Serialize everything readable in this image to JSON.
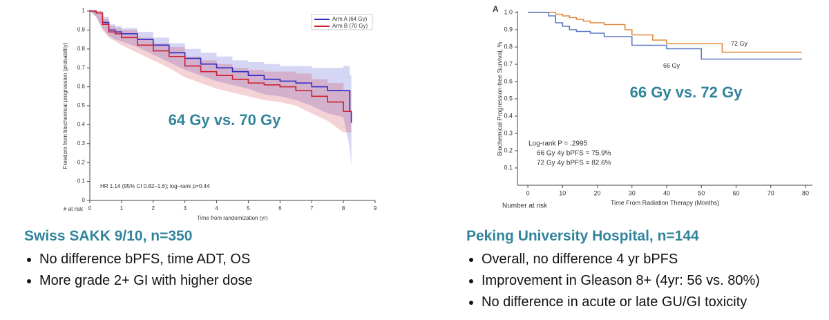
{
  "chart_data": [
    {
      "type": "line",
      "step": true,
      "y_label": "Freedom from biochemical progression (probability)",
      "x_label": "Time from randomization (yr)",
      "annotations": [
        "HR 1.14  (95% CI  0.82–1.6);  log–rank p=0.44",
        "# at risk",
        "64 Gy vs. 70 Gy"
      ],
      "legend": "upper right",
      "x": [
        0,
        0.2,
        0.4,
        0.6,
        0.8,
        1,
        1.5,
        2,
        2.5,
        3,
        3.5,
        4,
        4.5,
        5,
        5.5,
        6,
        6.5,
        7,
        7.5,
        8,
        8.2,
        8.25
      ],
      "series": [
        {
          "name": "Arm A (64 Gy)",
          "color": "#2b2bc8",
          "values": [
            1,
            0.99,
            0.94,
            0.9,
            0.89,
            0.88,
            0.85,
            0.82,
            0.78,
            0.75,
            0.72,
            0.7,
            0.68,
            0.66,
            0.64,
            0.63,
            0.62,
            0.6,
            0.58,
            0.58,
            0.47,
            0.41
          ],
          "upper": [
            1,
            1,
            0.97,
            0.93,
            0.92,
            0.91,
            0.89,
            0.86,
            0.83,
            0.8,
            0.78,
            0.76,
            0.74,
            0.73,
            0.72,
            0.71,
            0.71,
            0.7,
            0.7,
            0.71,
            0.66,
            0.62
          ],
          "lower": [
            1,
            0.97,
            0.91,
            0.87,
            0.85,
            0.84,
            0.81,
            0.77,
            0.73,
            0.69,
            0.66,
            0.63,
            0.61,
            0.59,
            0.56,
            0.55,
            0.53,
            0.5,
            0.46,
            0.44,
            0.28,
            0.18
          ]
        },
        {
          "name": "Arm B (70 Gy)",
          "color": "#cc1f2f",
          "values": [
            1,
            0.99,
            0.93,
            0.89,
            0.88,
            0.86,
            0.82,
            0.79,
            0.76,
            0.71,
            0.68,
            0.66,
            0.64,
            0.62,
            0.61,
            0.6,
            0.58,
            0.55,
            0.52,
            0.47,
            0.47,
            0.47
          ],
          "upper": [
            1,
            1,
            0.96,
            0.92,
            0.91,
            0.9,
            0.86,
            0.83,
            0.81,
            0.76,
            0.74,
            0.72,
            0.7,
            0.69,
            0.68,
            0.68,
            0.67,
            0.64,
            0.62,
            0.58,
            0.58,
            0.58
          ],
          "lower": [
            1,
            0.97,
            0.9,
            0.86,
            0.84,
            0.82,
            0.78,
            0.74,
            0.7,
            0.65,
            0.62,
            0.59,
            0.57,
            0.55,
            0.53,
            0.52,
            0.5,
            0.46,
            0.42,
            0.36,
            0.36,
            0.36
          ]
        }
      ],
      "xlim": [
        0,
        9
      ],
      "xticks": [
        0,
        1,
        2,
        3,
        4,
        5,
        6,
        7,
        8,
        9
      ],
      "ylim": [
        0,
        1
      ],
      "yticks": [
        0,
        0.1,
        0.2,
        0.3,
        0.4,
        0.5,
        0.6,
        0.7,
        0.8,
        0.9,
        1
      ]
    },
    {
      "type": "line",
      "step": true,
      "panel_label": "A",
      "y_label": "Biochemical Progression-free Survival, %",
      "x_label": "Time From Radiation Therapy (Months)",
      "annotations": [
        "Number at risk",
        "Log-rank P = .2995",
        "66 Gy 4y bPFS = 75.9%",
        "72 Gy 4y bPFS = 82.6%",
        "66 Gy vs. 72 Gy"
      ],
      "legend": "inline",
      "x": [
        0,
        6,
        8,
        10,
        12,
        14,
        16,
        18,
        20,
        22,
        24,
        28,
        30,
        36,
        40,
        50,
        56,
        79
      ],
      "series": [
        {
          "name": "72 Gy",
          "color": "#e08a3c",
          "values": [
            1,
            1,
            0.99,
            0.98,
            0.97,
            0.96,
            0.95,
            0.94,
            0.94,
            0.93,
            0.93,
            0.9,
            0.87,
            0.84,
            0.82,
            0.82,
            0.77,
            0.77
          ]
        },
        {
          "name": "66 Gy",
          "color": "#5b79c4",
          "values": [
            1,
            0.98,
            0.94,
            0.92,
            0.9,
            0.89,
            0.89,
            0.88,
            0.88,
            0.86,
            0.86,
            0.86,
            0.81,
            0.81,
            0.79,
            0.73,
            0.73,
            0.73
          ]
        }
      ],
      "xlim": [
        -3,
        82
      ],
      "xticks": [
        0,
        10,
        20,
        30,
        40,
        50,
        60,
        70,
        80
      ],
      "ylim": [
        0,
        1
      ],
      "yticks": [
        {
          "value": 1,
          "label": "1.0"
        },
        0.9,
        0.8,
        0.7,
        0.6,
        0.5,
        0.4,
        0.3,
        0.2,
        0.1
      ]
    }
  ],
  "panels": [
    {
      "heading": "Swiss SAKK 9/10, n=350",
      "bullets": [
        "No difference bPFS, time ADT, OS",
        "More grade 2+ GI with higher dose"
      ]
    },
    {
      "heading": "Peking University  Hospital, n=144",
      "bullets": [
        "Overall, no difference 4 yr bPFS",
        "Improvement in Gleason 8+ (4yr: 56 vs. 80%)",
        "No difference in acute or late GU/GI toxicity"
      ]
    }
  ]
}
